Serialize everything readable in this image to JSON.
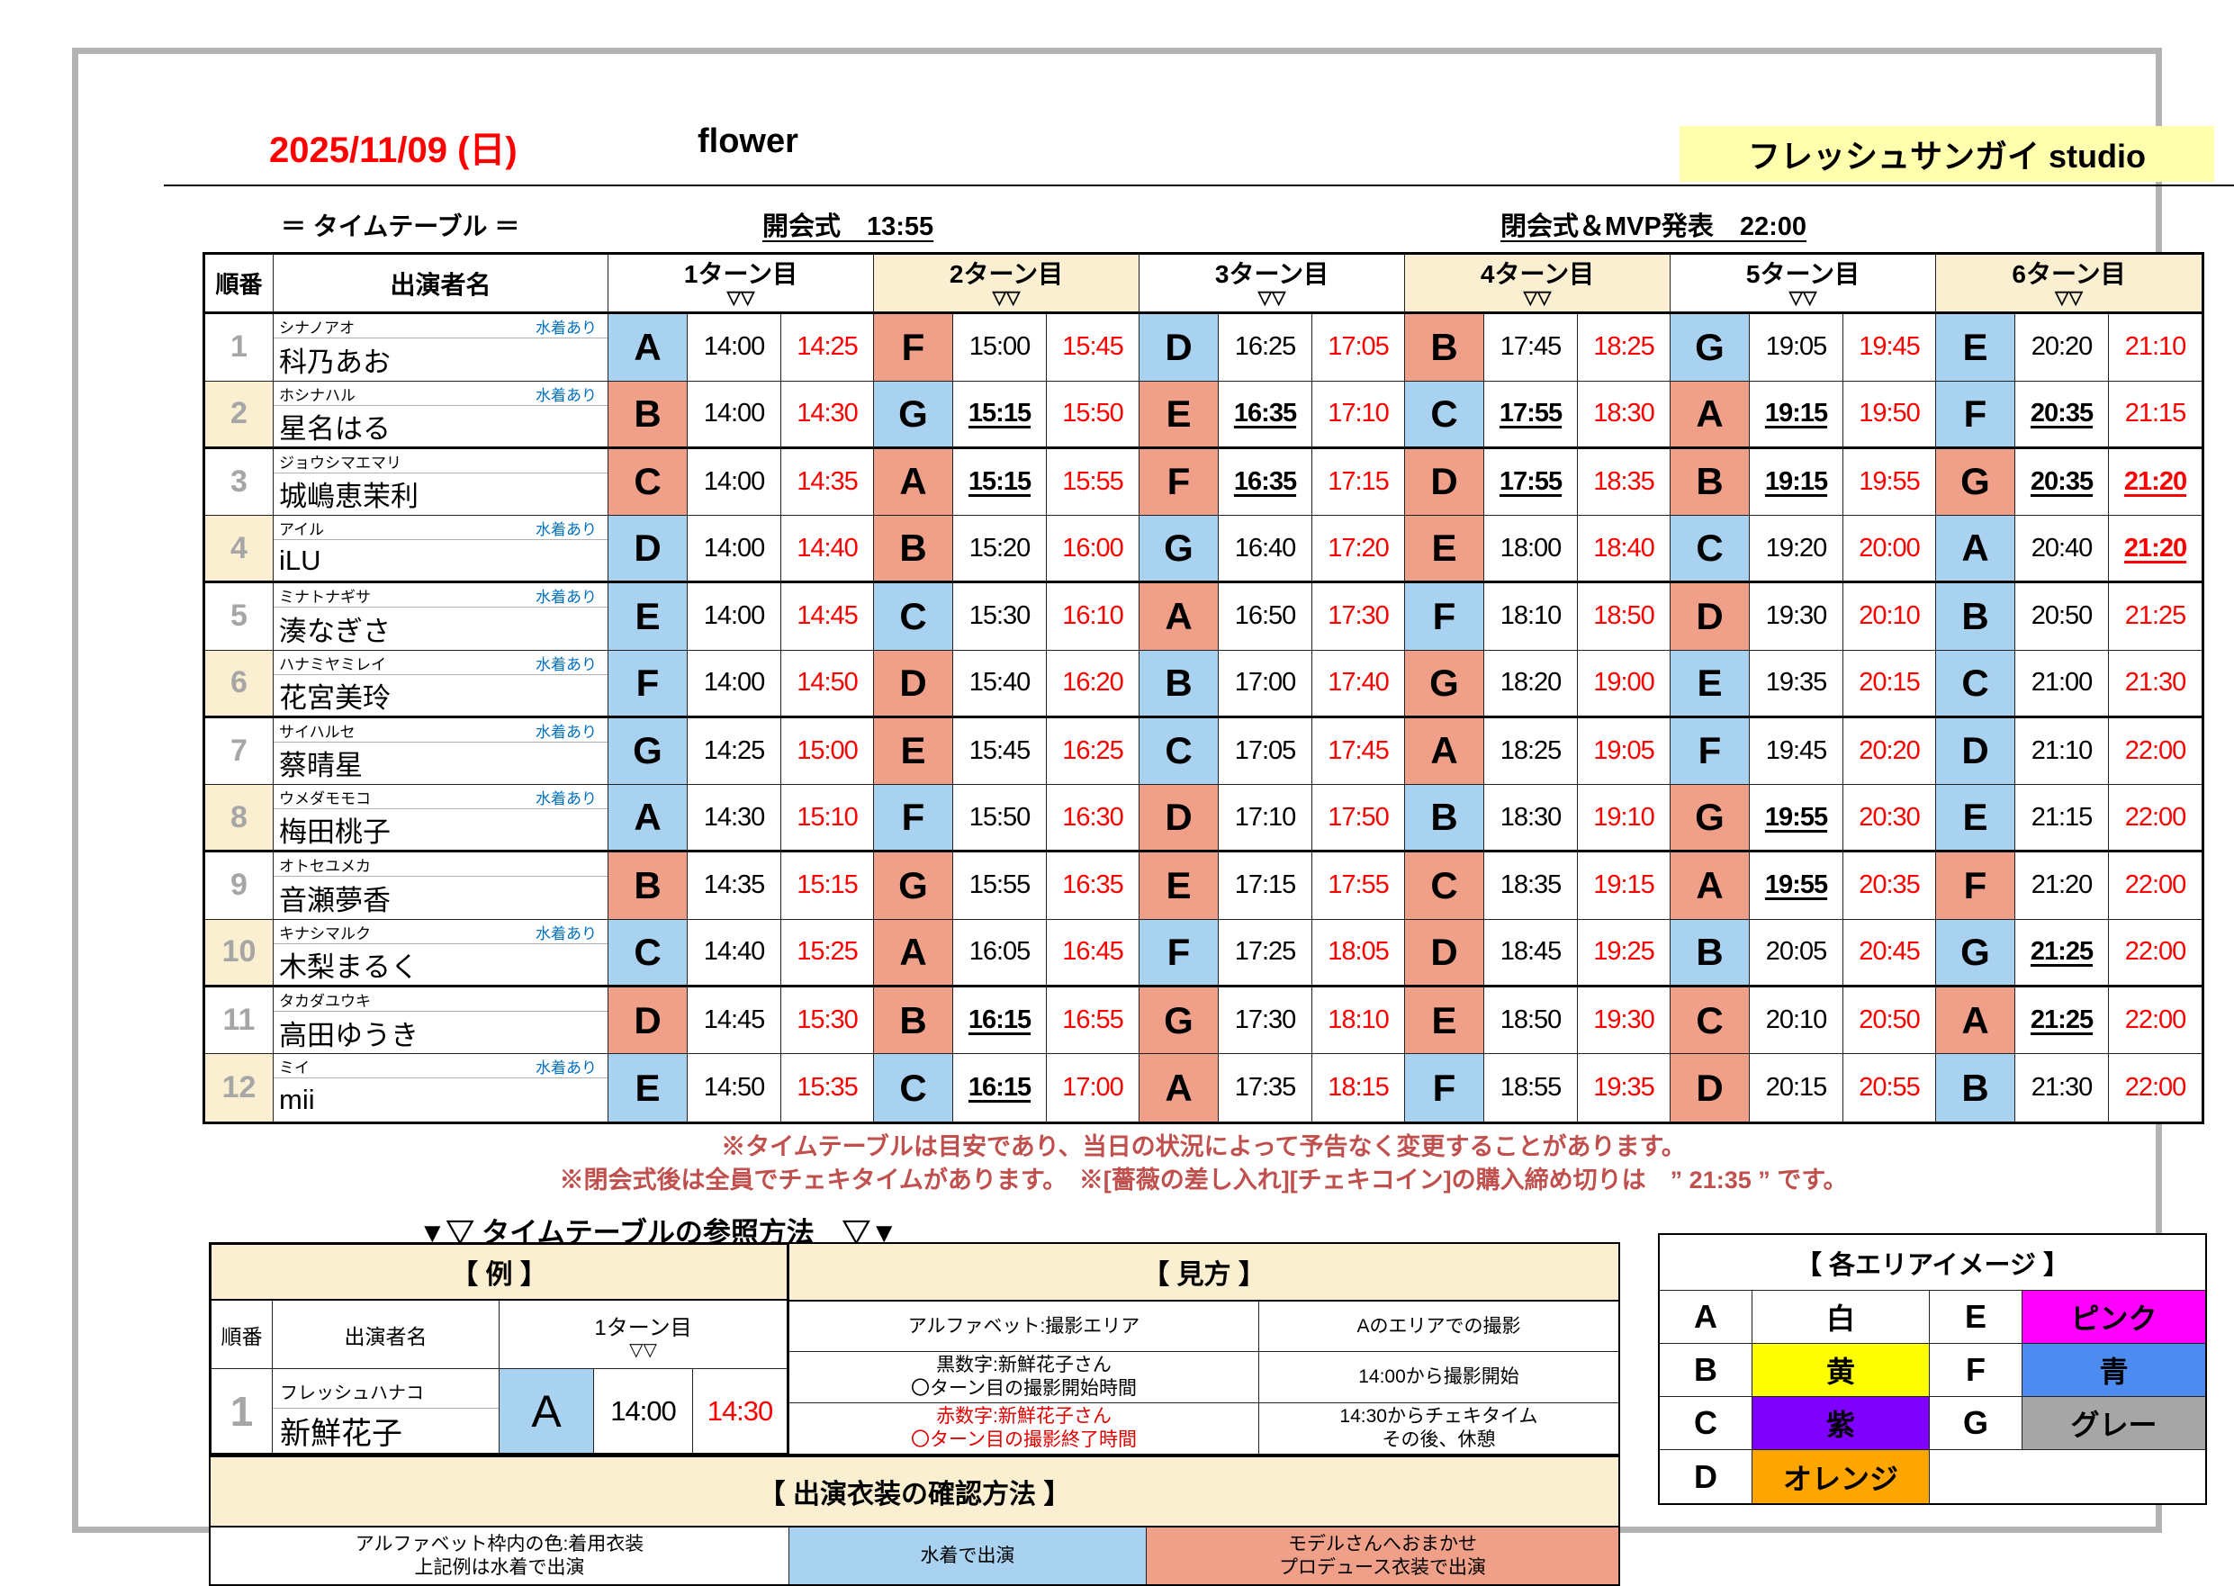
{
  "page": {
    "date": "2025/11/09 (日)",
    "event_name": "flower",
    "studio_name": "フレッシュサンガイ studio",
    "subtitle": "＝ タイムテーブル ＝",
    "opening_ceremony": "開会式　13:55",
    "closing_ceremony": "閉会式＆MVP発表　22:00"
  },
  "colors": {
    "swim_cell": "#A8D2F0",
    "produce_cell": "#F0A088",
    "header_cream": "#FBEFD1",
    "studio_banner": "#FFFFAD",
    "time_end_red": "#FF0000",
    "note_red": "#C0504D",
    "row_number_gray": "#A6A6A6",
    "swim_note_blue": "#0070C0"
  },
  "timetable": {
    "col_order": "順番",
    "col_performer": "出演者名",
    "turn_labels": [
      "1ターン目",
      "2ターン目",
      "3ターン目",
      "4ターン目",
      "5ターン目",
      "6ターン目"
    ],
    "turn_sub": "▽▽",
    "rows": [
      {
        "no": "1",
        "furigana": "シナノアオ",
        "swim_note": "水着あり",
        "name": "科乃あお",
        "turns": [
          {
            "area": "A",
            "outfit": "swim",
            "start": "14:00",
            "end": "14:25"
          },
          {
            "area": "F",
            "outfit": "produce",
            "start": "15:00",
            "end": "15:45"
          },
          {
            "area": "D",
            "outfit": "swim",
            "start": "16:25",
            "end": "17:05"
          },
          {
            "area": "B",
            "outfit": "produce",
            "start": "17:45",
            "end": "18:25"
          },
          {
            "area": "G",
            "outfit": "swim",
            "start": "19:05",
            "end": "19:45"
          },
          {
            "area": "E",
            "outfit": "swim",
            "start": "20:20",
            "end": "21:10"
          }
        ]
      },
      {
        "no": "2",
        "furigana": "ホシナハル",
        "swim_note": "水着あり",
        "name": "星名はる",
        "turns": [
          {
            "area": "B",
            "outfit": "produce",
            "start": "14:00",
            "end": "14:30"
          },
          {
            "area": "G",
            "outfit": "swim",
            "start": "15:15",
            "start_u": true,
            "end": "15:50"
          },
          {
            "area": "E",
            "outfit": "produce",
            "start": "16:35",
            "start_u": true,
            "end": "17:10"
          },
          {
            "area": "C",
            "outfit": "swim",
            "start": "17:55",
            "start_u": true,
            "end": "18:30"
          },
          {
            "area": "A",
            "outfit": "produce",
            "start": "19:15",
            "start_u": true,
            "end": "19:50"
          },
          {
            "area": "F",
            "outfit": "swim",
            "start": "20:35",
            "start_u": true,
            "end": "21:15"
          }
        ]
      },
      {
        "no": "3",
        "furigana": "ジョウシマエマリ",
        "swim_note": "",
        "name": "城嶋恵茉利",
        "turns": [
          {
            "area": "C",
            "outfit": "produce",
            "start": "14:00",
            "end": "14:35"
          },
          {
            "area": "A",
            "outfit": "produce",
            "start": "15:15",
            "start_u": true,
            "end": "15:55"
          },
          {
            "area": "F",
            "outfit": "produce",
            "start": "16:35",
            "start_u": true,
            "end": "17:15"
          },
          {
            "area": "D",
            "outfit": "produce",
            "start": "17:55",
            "start_u": true,
            "end": "18:35"
          },
          {
            "area": "B",
            "outfit": "produce",
            "start": "19:15",
            "start_u": true,
            "end": "19:55"
          },
          {
            "area": "G",
            "outfit": "produce",
            "start": "20:35",
            "start_u": true,
            "end": "21:20",
            "end_u": true
          }
        ]
      },
      {
        "no": "4",
        "furigana": "アイル",
        "swim_note": "水着あり",
        "name": "iLU",
        "turns": [
          {
            "area": "D",
            "outfit": "swim",
            "start": "14:00",
            "end": "14:40"
          },
          {
            "area": "B",
            "outfit": "produce",
            "start": "15:20",
            "end": "16:00"
          },
          {
            "area": "G",
            "outfit": "swim",
            "start": "16:40",
            "end": "17:20"
          },
          {
            "area": "E",
            "outfit": "produce",
            "start": "18:00",
            "end": "18:40"
          },
          {
            "area": "C",
            "outfit": "swim",
            "start": "19:20",
            "end": "20:00"
          },
          {
            "area": "A",
            "outfit": "swim",
            "start": "20:40",
            "end": "21:20",
            "end_u": true
          }
        ]
      },
      {
        "no": "5",
        "furigana": "ミナトナギサ",
        "swim_note": "水着あり",
        "name": "湊なぎさ",
        "turns": [
          {
            "area": "E",
            "outfit": "swim",
            "start": "14:00",
            "end": "14:45"
          },
          {
            "area": "C",
            "outfit": "swim",
            "start": "15:30",
            "end": "16:10"
          },
          {
            "area": "A",
            "outfit": "produce",
            "start": "16:50",
            "end": "17:30"
          },
          {
            "area": "F",
            "outfit": "swim",
            "start": "18:10",
            "end": "18:50"
          },
          {
            "area": "D",
            "outfit": "produce",
            "start": "19:30",
            "end": "20:10"
          },
          {
            "area": "B",
            "outfit": "swim",
            "start": "20:50",
            "end": "21:25"
          }
        ]
      },
      {
        "no": "6",
        "furigana": "ハナミヤミレイ",
        "swim_note": "水着あり",
        "name": "花宮美玲",
        "turns": [
          {
            "area": "F",
            "outfit": "swim",
            "start": "14:00",
            "end": "14:50"
          },
          {
            "area": "D",
            "outfit": "produce",
            "start": "15:40",
            "end": "16:20"
          },
          {
            "area": "B",
            "outfit": "swim",
            "start": "17:00",
            "end": "17:40"
          },
          {
            "area": "G",
            "outfit": "produce",
            "start": "18:20",
            "end": "19:00"
          },
          {
            "area": "E",
            "outfit": "swim",
            "start": "19:35",
            "end": "20:15"
          },
          {
            "area": "C",
            "outfit": "swim",
            "start": "21:00",
            "end": "21:30"
          }
        ]
      },
      {
        "no": "7",
        "furigana": "サイハルセ",
        "swim_note": "水着あり",
        "name": "蔡晴星",
        "turns": [
          {
            "area": "G",
            "outfit": "swim",
            "start": "14:25",
            "end": "15:00"
          },
          {
            "area": "E",
            "outfit": "produce",
            "start": "15:45",
            "end": "16:25"
          },
          {
            "area": "C",
            "outfit": "swim",
            "start": "17:05",
            "end": "17:45"
          },
          {
            "area": "A",
            "outfit": "produce",
            "start": "18:25",
            "end": "19:05"
          },
          {
            "area": "F",
            "outfit": "swim",
            "start": "19:45",
            "end": "20:20"
          },
          {
            "area": "D",
            "outfit": "swim",
            "start": "21:10",
            "end": "22:00"
          }
        ]
      },
      {
        "no": "8",
        "furigana": "ウメダモモコ",
        "swim_note": "水着あり",
        "name": "梅田桃子",
        "turns": [
          {
            "area": "A",
            "outfit": "swim",
            "start": "14:30",
            "end": "15:10"
          },
          {
            "area": "F",
            "outfit": "swim",
            "start": "15:50",
            "end": "16:30"
          },
          {
            "area": "D",
            "outfit": "produce",
            "start": "17:10",
            "end": "17:50"
          },
          {
            "area": "B",
            "outfit": "swim",
            "start": "18:30",
            "end": "19:10"
          },
          {
            "area": "G",
            "outfit": "produce",
            "start": "19:55",
            "start_u": true,
            "end": "20:30"
          },
          {
            "area": "E",
            "outfit": "swim",
            "start": "21:15",
            "end": "22:00"
          }
        ]
      },
      {
        "no": "9",
        "furigana": "オトセユメカ",
        "swim_note": "",
        "name": "音瀬夢香",
        "turns": [
          {
            "area": "B",
            "outfit": "produce",
            "start": "14:35",
            "end": "15:15"
          },
          {
            "area": "G",
            "outfit": "produce",
            "start": "15:55",
            "end": "16:35"
          },
          {
            "area": "E",
            "outfit": "produce",
            "start": "17:15",
            "end": "17:55"
          },
          {
            "area": "C",
            "outfit": "produce",
            "start": "18:35",
            "end": "19:15"
          },
          {
            "area": "A",
            "outfit": "produce",
            "start": "19:55",
            "start_u": true,
            "end": "20:35"
          },
          {
            "area": "F",
            "outfit": "produce",
            "start": "21:20",
            "end": "22:00"
          }
        ]
      },
      {
        "no": "10",
        "furigana": "キナシマルク",
        "swim_note": "水着あり",
        "name": "木梨まるく",
        "turns": [
          {
            "area": "C",
            "outfit": "swim",
            "start": "14:40",
            "end": "15:25"
          },
          {
            "area": "A",
            "outfit": "produce",
            "start": "16:05",
            "end": "16:45"
          },
          {
            "area": "F",
            "outfit": "swim",
            "start": "17:25",
            "end": "18:05"
          },
          {
            "area": "D",
            "outfit": "produce",
            "start": "18:45",
            "end": "19:25"
          },
          {
            "area": "B",
            "outfit": "swim",
            "start": "20:05",
            "end": "20:45"
          },
          {
            "area": "G",
            "outfit": "swim",
            "start": "21:25",
            "start_u": true,
            "end": "22:00"
          }
        ]
      },
      {
        "no": "11",
        "furigana": "タカダユウキ",
        "swim_note": "",
        "name": "高田ゆうき",
        "turns": [
          {
            "area": "D",
            "outfit": "produce",
            "start": "14:45",
            "end": "15:30"
          },
          {
            "area": "B",
            "outfit": "produce",
            "start": "16:15",
            "start_u": true,
            "end": "16:55"
          },
          {
            "area": "G",
            "outfit": "produce",
            "start": "17:30",
            "end": "18:10"
          },
          {
            "area": "E",
            "outfit": "produce",
            "start": "18:50",
            "end": "19:30"
          },
          {
            "area": "C",
            "outfit": "produce",
            "start": "20:10",
            "end": "20:50"
          },
          {
            "area": "A",
            "outfit": "produce",
            "start": "21:25",
            "start_u": true,
            "end": "22:00"
          }
        ]
      },
      {
        "no": "12",
        "furigana": "ミイ",
        "swim_note": "水着あり",
        "name": "mii",
        "turns": [
          {
            "area": "E",
            "outfit": "swim",
            "start": "14:50",
            "end": "15:35"
          },
          {
            "area": "C",
            "outfit": "swim",
            "start": "16:15",
            "start_u": true,
            "end": "17:00"
          },
          {
            "area": "A",
            "outfit": "produce",
            "start": "17:35",
            "end": "18:15"
          },
          {
            "area": "F",
            "outfit": "swim",
            "start": "18:55",
            "end": "19:35"
          },
          {
            "area": "D",
            "outfit": "produce",
            "start": "20:15",
            "end": "20:55"
          },
          {
            "area": "B",
            "outfit": "swim",
            "start": "21:30",
            "end": "22:00"
          }
        ]
      }
    ]
  },
  "notes": [
    "※タイムテーブルは目安であり、当日の状況によって予告なく変更することがあります。",
    "※閉会式後は全員でチェキタイムがあります。　※[薔薇の差し入れ][チェキコイン]の購入締め切りは　” 21:35 ” です。"
  ],
  "reference": {
    "title": "▼▽ タイムテーブルの参照方法　▽▼",
    "example": {
      "title": "【 例 】",
      "col_order": "順番",
      "col_performer": "出演者名",
      "turn_label": "1ターン目",
      "turn_sub": "▽▽",
      "row": {
        "no": "1",
        "furigana": "フレッシュハナコ",
        "name": "新鮮花子",
        "area": "A",
        "outfit": "swim",
        "start": "14:00",
        "end": "14:30"
      }
    },
    "guide": {
      "title": "【 見方 】",
      "rows": [
        {
          "left": "アルファベット:撮影エリア",
          "right": "Aのエリアでの撮影",
          "red": false
        },
        {
          "left": "黒数字:新鮮花子さん\n〇ターン目の撮影開始時間",
          "right": "14:00から撮影開始",
          "red": false
        },
        {
          "left": "赤数字:新鮮花子さん\n〇ターン目の撮影終了時間",
          "right": "14:30からチェキタイム\nその後、休憩",
          "red": true
        }
      ]
    },
    "outfit_legend": {
      "title": "【 出演衣装の確認方法 】",
      "plain": "アルファベット枠内の色:着用衣装\n上記例は水着で出演",
      "swim": "水着で出演",
      "produce": "モデルさんへおまかせ\nプロデュース衣装で出演"
    },
    "area_legend": {
      "title": "【 各エリアイメージ 】",
      "entries": [
        {
          "area": "A",
          "label": "白",
          "color": "#FFFFFF"
        },
        {
          "area": "B",
          "label": "黄",
          "color": "#FFFF00"
        },
        {
          "area": "C",
          "label": "紫",
          "color": "#7F00FF"
        },
        {
          "area": "D",
          "label": "オレンジ",
          "color": "#FFA500"
        },
        {
          "area": "E",
          "label": "ピンク",
          "color": "#FF00FF"
        },
        {
          "area": "F",
          "label": "青",
          "color": "#4D8BF0"
        },
        {
          "area": "G",
          "label": "グレー",
          "color": "#A6A6A6"
        }
      ]
    }
  }
}
